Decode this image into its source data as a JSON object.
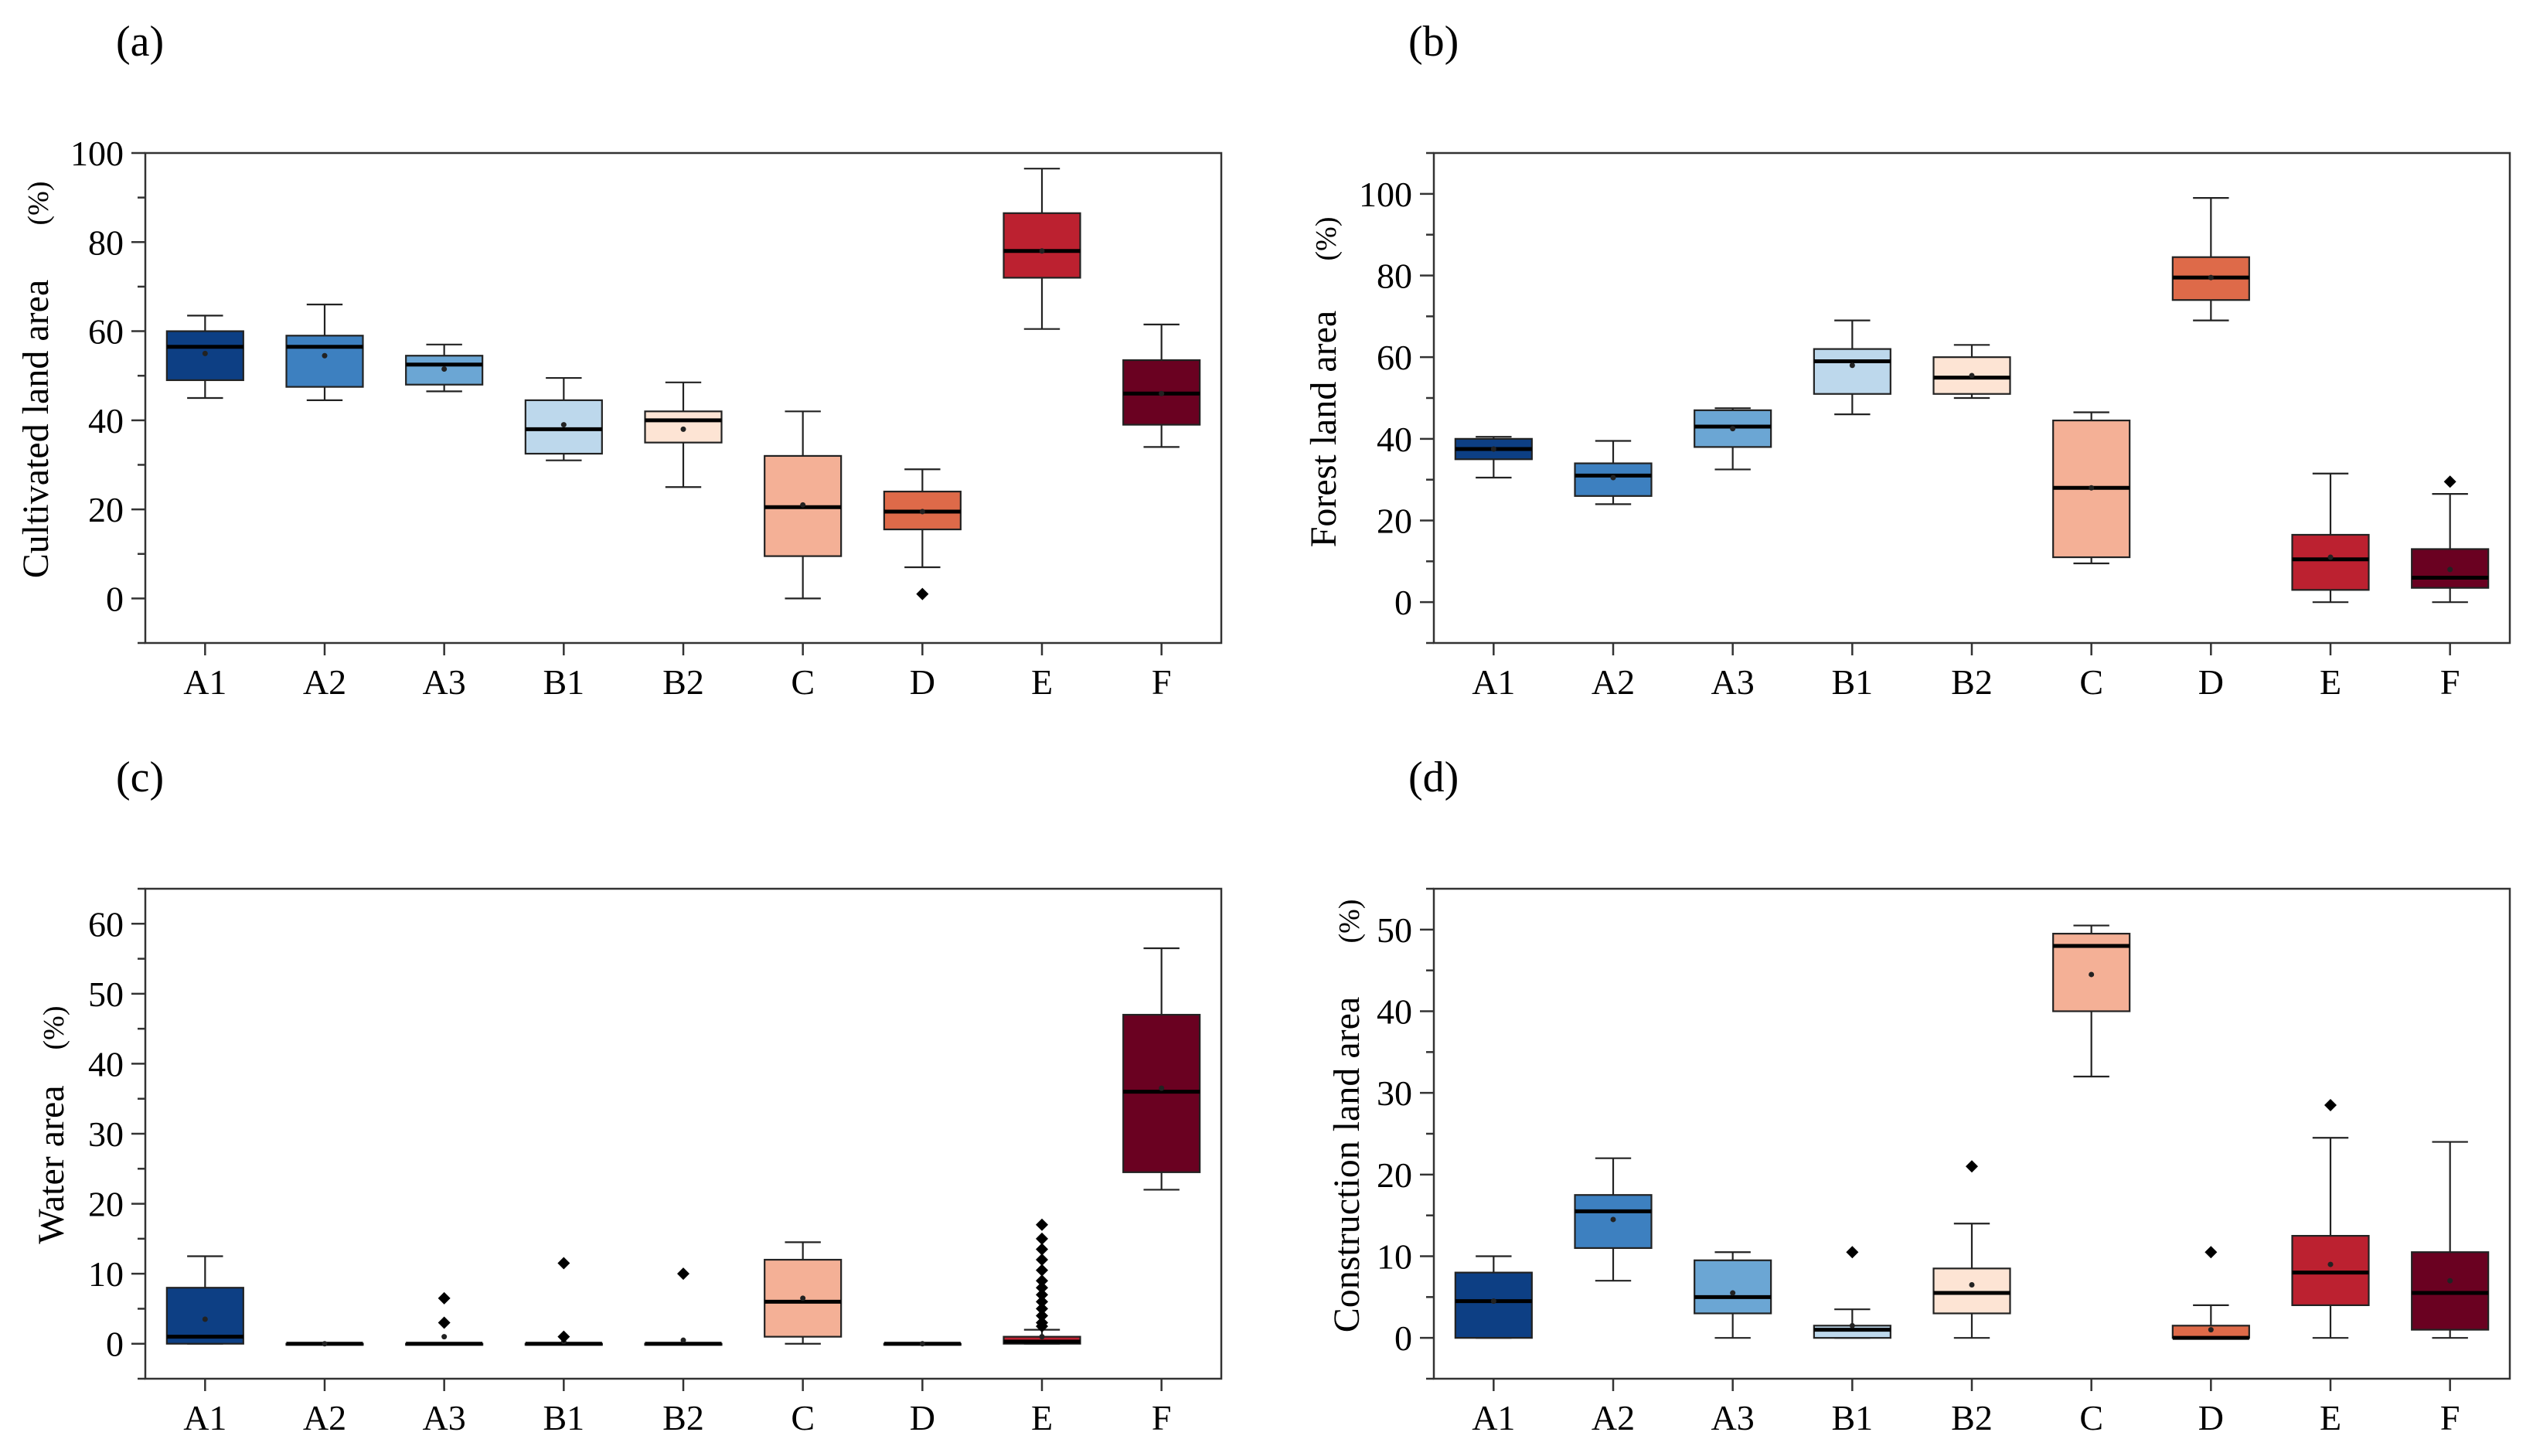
{
  "colors": {
    "A1": "#0d3f84",
    "A2": "#3d80c0",
    "A3": "#6ba6d4",
    "B1": "#bdd8ec",
    "B2": "#fde4d4",
    "C": "#f4b096",
    "D": "#de6a49",
    "E": "#bc2130",
    "F": "#6a0121"
  },
  "chart_data": [
    {
      "type": "box",
      "panel": "(a)",
      "ylabel": "Cultivated land area",
      "unit": "(%)",
      "ylim": [
        -10,
        100
      ],
      "yticks": [
        0,
        20,
        40,
        60,
        80,
        100
      ],
      "categories": [
        "A1",
        "A2",
        "A3",
        "B1",
        "B2",
        "C",
        "D",
        "E",
        "F"
      ],
      "boxes": [
        {
          "min": 45,
          "q1": 49,
          "median": 56.5,
          "q3": 60,
          "max": 63.5,
          "mean": 55,
          "outliers": []
        },
        {
          "min": 44.5,
          "q1": 47.5,
          "median": 56.5,
          "q3": 59,
          "max": 66,
          "mean": 54.5,
          "outliers": []
        },
        {
          "min": 46.5,
          "q1": 48,
          "median": 52.5,
          "q3": 54.5,
          "max": 57,
          "mean": 51.5,
          "outliers": []
        },
        {
          "min": 31,
          "q1": 32.5,
          "median": 38,
          "q3": 44.5,
          "max": 49.5,
          "mean": 39,
          "outliers": []
        },
        {
          "min": 25,
          "q1": 35,
          "median": 40,
          "q3": 42,
          "max": 48.5,
          "mean": 38,
          "outliers": []
        },
        {
          "min": 0,
          "q1": 9.5,
          "median": 20.5,
          "q3": 32,
          "max": 42,
          "mean": 21,
          "outliers": []
        },
        {
          "min": 7,
          "q1": 15.5,
          "median": 19.5,
          "q3": 24,
          "max": 29,
          "mean": 19.5,
          "outliers": [
            1
          ]
        },
        {
          "min": 60.5,
          "q1": 72,
          "median": 78,
          "q3": 86.5,
          "max": 96.5,
          "mean": 78,
          "outliers": []
        },
        {
          "min": 34,
          "q1": 39,
          "median": 46,
          "q3": 53.5,
          "max": 61.5,
          "mean": 46,
          "outliers": []
        }
      ]
    },
    {
      "type": "box",
      "panel": "(b)",
      "ylabel": "Forest land area",
      "unit": "(%)",
      "ylim": [
        -10,
        110
      ],
      "yticks": [
        0,
        20,
        40,
        60,
        80,
        100
      ],
      "categories": [
        "A1",
        "A2",
        "A3",
        "B1",
        "B2",
        "C",
        "D",
        "E",
        "F"
      ],
      "boxes": [
        {
          "min": 30.5,
          "q1": 35,
          "median": 37.5,
          "q3": 40,
          "max": 40.5,
          "mean": 37.5,
          "outliers": []
        },
        {
          "min": 24,
          "q1": 26,
          "median": 31,
          "q3": 34,
          "max": 39.5,
          "mean": 30.5,
          "outliers": []
        },
        {
          "min": 32.5,
          "q1": 38,
          "median": 43,
          "q3": 47,
          "max": 47.5,
          "mean": 42.5,
          "outliers": []
        },
        {
          "min": 46,
          "q1": 51,
          "median": 59,
          "q3": 62,
          "max": 69,
          "mean": 58,
          "outliers": []
        },
        {
          "min": 50,
          "q1": 51,
          "median": 55,
          "q3": 60,
          "max": 63,
          "mean": 55.5,
          "outliers": []
        },
        {
          "min": 9.5,
          "q1": 11,
          "median": 28,
          "q3": 44.5,
          "max": 46.5,
          "mean": 28,
          "outliers": []
        },
        {
          "min": 69,
          "q1": 74,
          "median": 79.5,
          "q3": 84.5,
          "max": 99,
          "mean": 79.5,
          "outliers": []
        },
        {
          "min": 0,
          "q1": 3,
          "median": 10.5,
          "q3": 16.5,
          "max": 31.5,
          "mean": 11,
          "outliers": []
        },
        {
          "min": 0,
          "q1": 3.5,
          "median": 6,
          "q3": 13,
          "max": 26.5,
          "mean": 8,
          "outliers": [
            29.5
          ]
        }
      ]
    },
    {
      "type": "box",
      "panel": "(c)",
      "ylabel": "Water area",
      "unit": "(%)",
      "ylim": [
        -5,
        65
      ],
      "yticks": [
        0,
        10,
        20,
        30,
        40,
        50,
        60
      ],
      "categories": [
        "A1",
        "A2",
        "A3",
        "B1",
        "B2",
        "C",
        "D",
        "E",
        "F"
      ],
      "boxes": [
        {
          "min": 0,
          "q1": 0,
          "median": 1,
          "q3": 8,
          "max": 12.5,
          "mean": 3.5,
          "outliers": []
        },
        {
          "min": 0,
          "q1": 0,
          "median": 0,
          "q3": 0,
          "max": 0,
          "mean": 0,
          "outliers": []
        },
        {
          "min": 0,
          "q1": 0,
          "median": 0,
          "q3": 0,
          "max": 0,
          "mean": 1,
          "outliers": [
            3,
            6.5
          ]
        },
        {
          "min": 0,
          "q1": 0,
          "median": 0,
          "q3": 0,
          "max": 0,
          "mean": 0.3,
          "outliers": [
            1,
            11.5
          ]
        },
        {
          "min": 0,
          "q1": 0,
          "median": 0,
          "q3": 0,
          "max": 0,
          "mean": 0.5,
          "outliers": [
            10
          ]
        },
        {
          "min": 0,
          "q1": 1,
          "median": 6,
          "q3": 12,
          "max": 14.5,
          "mean": 6.5,
          "outliers": []
        },
        {
          "min": 0,
          "q1": 0,
          "median": 0,
          "q3": 0,
          "max": 0,
          "mean": 0,
          "outliers": []
        },
        {
          "min": 0,
          "q1": 0,
          "median": 0.3,
          "q3": 1,
          "max": 2,
          "mean": 1,
          "outliers": [
            2.5,
            3,
            4,
            5,
            6,
            7,
            8,
            9,
            10.5,
            12,
            13.5,
            15,
            17
          ]
        },
        {
          "min": 22,
          "q1": 24.5,
          "median": 36,
          "q3": 47,
          "max": 56.5,
          "mean": 36.5,
          "outliers": []
        }
      ]
    },
    {
      "type": "box",
      "panel": "(d)",
      "ylabel": "Construction land area",
      "unit": "(%)",
      "ylim": [
        -5,
        55
      ],
      "yticks": [
        0,
        10,
        20,
        30,
        40,
        50
      ],
      "categories": [
        "A1",
        "A2",
        "A3",
        "B1",
        "B2",
        "C",
        "D",
        "E",
        "F"
      ],
      "boxes": [
        {
          "min": 0,
          "q1": 0,
          "median": 4.5,
          "q3": 8,
          "max": 10,
          "mean": 4.5,
          "outliers": []
        },
        {
          "min": 7,
          "q1": 11,
          "median": 15.5,
          "q3": 17.5,
          "max": 22,
          "mean": 14.5,
          "outliers": []
        },
        {
          "min": 0,
          "q1": 3,
          "median": 5,
          "q3": 9.5,
          "max": 10.5,
          "mean": 5.5,
          "outliers": []
        },
        {
          "min": 0,
          "q1": 0,
          "median": 1,
          "q3": 1.5,
          "max": 3.5,
          "mean": 1.5,
          "outliers": [
            10.5
          ]
        },
        {
          "min": 0,
          "q1": 3,
          "median": 5.5,
          "q3": 8.5,
          "max": 14,
          "mean": 6.5,
          "outliers": [
            21
          ]
        },
        {
          "min": 32,
          "q1": 40,
          "median": 48,
          "q3": 49.5,
          "max": 50.5,
          "mean": 44.5,
          "outliers": []
        },
        {
          "min": 0,
          "q1": 0,
          "median": 0,
          "q3": 1.5,
          "max": 4,
          "mean": 1,
          "outliers": [
            10.5
          ]
        },
        {
          "min": 0,
          "q1": 4,
          "median": 8,
          "q3": 12.5,
          "max": 24.5,
          "mean": 9,
          "outliers": [
            28.5
          ]
        },
        {
          "min": 0,
          "q1": 1,
          "median": 5.5,
          "q3": 10.5,
          "max": 24,
          "mean": 7,
          "outliers": []
        }
      ]
    }
  ]
}
